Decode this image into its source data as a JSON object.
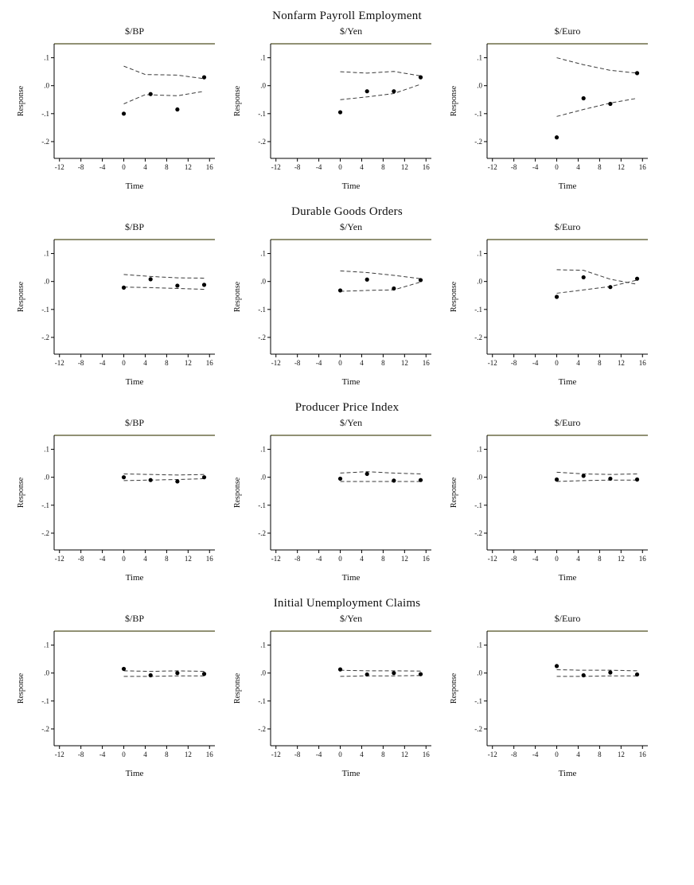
{
  "colors": {
    "background": "#ffffff",
    "axis": "#000000",
    "top_border": "#4f4f20",
    "band": "#3a3a3a",
    "point": "#000000",
    "text": "#111111"
  },
  "rows": [
    {
      "title": "Nonfarm Payroll Employment"
    },
    {
      "title": "Durable Goods Orders"
    },
    {
      "title": "Producer Price Index"
    },
    {
      "title": "Initial Unemployment Claims"
    }
  ],
  "chart_data": [
    {
      "type": "scatter",
      "group": "Nonfarm Payroll Employment",
      "title": "$/BP",
      "xlabel": "Time",
      "ylabel": "Response",
      "xlim": [
        -13,
        17
      ],
      "ylim": [
        -0.26,
        0.15
      ],
      "xticks": [
        -12,
        -8,
        -4,
        0,
        4,
        8,
        12,
        16
      ],
      "yticks": [
        0.1,
        0.0,
        -0.1,
        -0.2
      ],
      "ytick_labels": [
        ".1",
        ".0",
        "-.1",
        "-.2"
      ],
      "points": {
        "x": [
          0,
          5,
          10,
          15
        ],
        "y": [
          -0.1,
          -0.03,
          -0.085,
          0.03
        ]
      },
      "upper_band": {
        "x": [
          0,
          4,
          10,
          15
        ],
        "y": [
          0.07,
          0.04,
          0.038,
          0.025
        ]
      },
      "lower_band": {
        "x": [
          0,
          4,
          10,
          15
        ],
        "y": [
          -0.065,
          -0.032,
          -0.036,
          -0.02
        ]
      }
    },
    {
      "type": "scatter",
      "group": "Nonfarm Payroll Employment",
      "title": "$/Yen",
      "xlabel": "Time",
      "ylabel": "Response",
      "xlim": [
        -13,
        17
      ],
      "ylim": [
        -0.26,
        0.15
      ],
      "xticks": [
        -12,
        -8,
        -4,
        0,
        4,
        8,
        12,
        16
      ],
      "yticks": [
        0.1,
        0.0,
        -0.1,
        -0.2
      ],
      "ytick_labels": [
        ".1",
        ".0",
        "-.1",
        "-.2"
      ],
      "points": {
        "x": [
          0,
          5,
          10,
          15
        ],
        "y": [
          -0.095,
          -0.02,
          -0.02,
          0.03
        ]
      },
      "upper_band": {
        "x": [
          0,
          5,
          10,
          15
        ],
        "y": [
          0.05,
          0.045,
          0.051,
          0.035
        ]
      },
      "lower_band": {
        "x": [
          0,
          5,
          10,
          15
        ],
        "y": [
          -0.05,
          -0.04,
          -0.028,
          0.005
        ]
      }
    },
    {
      "type": "scatter",
      "group": "Nonfarm Payroll Employment",
      "title": "$/Euro",
      "xlabel": "Time",
      "ylabel": "Response",
      "xlim": [
        -13,
        17
      ],
      "ylim": [
        -0.26,
        0.15
      ],
      "xticks": [
        -12,
        -8,
        -4,
        0,
        4,
        8,
        12,
        16
      ],
      "yticks": [
        0.1,
        0.0,
        -0.1,
        -0.2
      ],
      "ytick_labels": [
        ".1",
        ".0",
        "-.1",
        "-.2"
      ],
      "points": {
        "x": [
          0,
          5,
          10,
          15
        ],
        "y": [
          -0.185,
          -0.045,
          -0.065,
          0.045
        ]
      },
      "upper_band": {
        "x": [
          0,
          5,
          10,
          15
        ],
        "y": [
          0.1,
          0.075,
          0.055,
          0.045
        ]
      },
      "lower_band": {
        "x": [
          0,
          5,
          10,
          15
        ],
        "y": [
          -0.11,
          -0.085,
          -0.062,
          -0.045
        ]
      }
    },
    {
      "type": "scatter",
      "group": "Durable Goods Orders",
      "title": "$/BP",
      "xlabel": "Time",
      "ylabel": "Response",
      "xlim": [
        -13,
        17
      ],
      "ylim": [
        -0.26,
        0.15
      ],
      "xticks": [
        -12,
        -8,
        -4,
        0,
        4,
        8,
        12,
        16
      ],
      "yticks": [
        0.1,
        0.0,
        -0.1,
        -0.2
      ],
      "ytick_labels": [
        ".1",
        ".0",
        "-.1",
        "-.2"
      ],
      "points": {
        "x": [
          0,
          5,
          10,
          15
        ],
        "y": [
          -0.022,
          0.008,
          -0.015,
          -0.012
        ]
      },
      "upper_band": {
        "x": [
          0,
          5,
          10,
          15
        ],
        "y": [
          0.025,
          0.018,
          0.013,
          0.012
        ]
      },
      "lower_band": {
        "x": [
          0,
          5,
          10,
          15
        ],
        "y": [
          -0.02,
          -0.022,
          -0.025,
          -0.028
        ]
      }
    },
    {
      "type": "scatter",
      "group": "Durable Goods Orders",
      "title": "$/Yen",
      "xlabel": "Time",
      "ylabel": "Response",
      "xlim": [
        -13,
        17
      ],
      "ylim": [
        -0.26,
        0.15
      ],
      "xticks": [
        -12,
        -8,
        -4,
        0,
        4,
        8,
        12,
        16
      ],
      "yticks": [
        0.1,
        0.0,
        -0.1,
        -0.2
      ],
      "ytick_labels": [
        ".1",
        ".0",
        "-.1",
        "-.2"
      ],
      "points": {
        "x": [
          0,
          5,
          10,
          15
        ],
        "y": [
          -0.032,
          0.007,
          -0.025,
          0.005
        ]
      },
      "upper_band": {
        "x": [
          0,
          5,
          10,
          15
        ],
        "y": [
          0.038,
          0.032,
          0.022,
          0.01
        ]
      },
      "lower_band": {
        "x": [
          0,
          5,
          10,
          15
        ],
        "y": [
          -0.035,
          -0.032,
          -0.03,
          -0.002
        ]
      }
    },
    {
      "type": "scatter",
      "group": "Durable Goods Orders",
      "title": "$/Euro",
      "xlabel": "Time",
      "ylabel": "Response",
      "xlim": [
        -13,
        17
      ],
      "ylim": [
        -0.26,
        0.15
      ],
      "xticks": [
        -12,
        -8,
        -4,
        0,
        4,
        8,
        12,
        16
      ],
      "yticks": [
        0.1,
        0.0,
        -0.1,
        -0.2
      ],
      "ytick_labels": [
        ".1",
        ".0",
        "-.1",
        "-.2"
      ],
      "points": {
        "x": [
          0,
          5,
          10,
          15
        ],
        "y": [
          -0.055,
          0.015,
          -0.02,
          0.01
        ]
      },
      "upper_band": {
        "x": [
          0,
          5,
          10,
          15
        ],
        "y": [
          0.042,
          0.04,
          0.008,
          -0.01
        ]
      },
      "lower_band": {
        "x": [
          0,
          5,
          10,
          15
        ],
        "y": [
          -0.042,
          -0.03,
          -0.018,
          0.005
        ]
      }
    },
    {
      "type": "scatter",
      "group": "Producer Price Index",
      "title": "$/BP",
      "xlabel": "Time",
      "ylabel": "Response",
      "xlim": [
        -13,
        17
      ],
      "ylim": [
        -0.26,
        0.15
      ],
      "xticks": [
        -12,
        -8,
        -4,
        0,
        4,
        8,
        12,
        16
      ],
      "yticks": [
        0.1,
        0.0,
        -0.1,
        -0.2
      ],
      "ytick_labels": [
        ".1",
        ".0",
        "-.1",
        "-.2"
      ],
      "points": {
        "x": [
          0,
          5,
          10,
          15
        ],
        "y": [
          0.0,
          -0.01,
          -0.015,
          0.0
        ]
      },
      "upper_band": {
        "x": [
          0,
          5,
          10,
          15
        ],
        "y": [
          0.012,
          0.01,
          0.008,
          0.01
        ]
      },
      "lower_band": {
        "x": [
          0,
          5,
          10,
          15
        ],
        "y": [
          -0.012,
          -0.01,
          -0.008,
          -0.005
        ]
      }
    },
    {
      "type": "scatter",
      "group": "Producer Price Index",
      "title": "$/Yen",
      "xlabel": "Time",
      "ylabel": "Response",
      "xlim": [
        -13,
        17
      ],
      "ylim": [
        -0.26,
        0.15
      ],
      "xticks": [
        -12,
        -8,
        -4,
        0,
        4,
        8,
        12,
        16
      ],
      "yticks": [
        0.1,
        0.0,
        -0.1,
        -0.2
      ],
      "ytick_labels": [
        ".1",
        ".0",
        "-.1",
        "-.2"
      ],
      "points": {
        "x": [
          0,
          5,
          10,
          15
        ],
        "y": [
          -0.005,
          0.012,
          -0.012,
          -0.01
        ]
      },
      "upper_band": {
        "x": [
          0,
          5,
          10,
          15
        ],
        "y": [
          0.015,
          0.02,
          0.015,
          0.012
        ]
      },
      "lower_band": {
        "x": [
          0,
          5,
          10,
          15
        ],
        "y": [
          -0.015,
          -0.015,
          -0.015,
          -0.015
        ]
      }
    },
    {
      "type": "scatter",
      "group": "Producer Price Index",
      "title": "$/Euro",
      "xlabel": "Time",
      "ylabel": "Response",
      "xlim": [
        -13,
        17
      ],
      "ylim": [
        -0.26,
        0.15
      ],
      "xticks": [
        -12,
        -8,
        -4,
        0,
        4,
        8,
        12,
        16
      ],
      "yticks": [
        0.1,
        0.0,
        -0.1,
        -0.2
      ],
      "ytick_labels": [
        ".1",
        ".0",
        "-.1",
        "-.2"
      ],
      "points": {
        "x": [
          0,
          5,
          10,
          15
        ],
        "y": [
          -0.008,
          0.005,
          -0.005,
          -0.008
        ]
      },
      "upper_band": {
        "x": [
          0,
          5,
          10,
          15
        ],
        "y": [
          0.018,
          0.012,
          0.01,
          0.012
        ]
      },
      "lower_band": {
        "x": [
          0,
          5,
          10,
          15
        ],
        "y": [
          -0.015,
          -0.012,
          -0.01,
          -0.01
        ]
      }
    },
    {
      "type": "scatter",
      "group": "Initial Unemployment Claims",
      "title": "$/BP",
      "xlabel": "Time",
      "ylabel": "Response",
      "xlim": [
        -13,
        17
      ],
      "ylim": [
        -0.26,
        0.15
      ],
      "xticks": [
        -12,
        -8,
        -4,
        0,
        4,
        8,
        12,
        16
      ],
      "yticks": [
        0.1,
        0.0,
        -0.1,
        -0.2
      ],
      "ytick_labels": [
        ".1",
        ".0",
        "-.1",
        "-.2"
      ],
      "points": {
        "x": [
          0,
          5,
          10,
          15
        ],
        "y": [
          0.015,
          -0.008,
          0.0,
          -0.003
        ]
      },
      "upper_band": {
        "x": [
          0,
          5,
          10,
          15
        ],
        "y": [
          0.008,
          0.006,
          0.008,
          0.006
        ]
      },
      "lower_band": {
        "x": [
          0,
          5,
          10,
          15
        ],
        "y": [
          -0.012,
          -0.012,
          -0.01,
          -0.01
        ]
      }
    },
    {
      "type": "scatter",
      "group": "Initial Unemployment Claims",
      "title": "$/Yen",
      "xlabel": "Time",
      "ylabel": "Response",
      "xlim": [
        -13,
        17
      ],
      "ylim": [
        -0.26,
        0.15
      ],
      "xticks": [
        -12,
        -8,
        -4,
        0,
        4,
        8,
        12,
        16
      ],
      "yticks": [
        0.1,
        0.0,
        -0.1,
        -0.2
      ],
      "ytick_labels": [
        ".1",
        ".0",
        "-.1",
        "-.2"
      ],
      "points": {
        "x": [
          0,
          5,
          10,
          15
        ],
        "y": [
          0.013,
          -0.005,
          0.0,
          -0.004
        ]
      },
      "upper_band": {
        "x": [
          0,
          5,
          10,
          15
        ],
        "y": [
          0.01,
          0.008,
          0.008,
          0.007
        ]
      },
      "lower_band": {
        "x": [
          0,
          5,
          10,
          15
        ],
        "y": [
          -0.012,
          -0.01,
          -0.01,
          -0.009
        ]
      }
    },
    {
      "type": "scatter",
      "group": "Initial Unemployment Claims",
      "title": "$/Euro",
      "xlabel": "Time",
      "ylabel": "Response",
      "xlim": [
        -13,
        17
      ],
      "ylim": [
        -0.26,
        0.15
      ],
      "xticks": [
        -12,
        -8,
        -4,
        0,
        4,
        8,
        12,
        16
      ],
      "yticks": [
        0.1,
        0.0,
        -0.1,
        -0.2
      ],
      "ytick_labels": [
        ".1",
        ".0",
        "-.1",
        "-.2"
      ],
      "points": {
        "x": [
          0,
          5,
          10,
          15
        ],
        "y": [
          0.025,
          -0.008,
          0.002,
          -0.005
        ]
      },
      "upper_band": {
        "x": [
          0,
          5,
          10,
          15
        ],
        "y": [
          0.012,
          0.01,
          0.01,
          0.008
        ]
      },
      "lower_band": {
        "x": [
          0,
          5,
          10,
          15
        ],
        "y": [
          -0.012,
          -0.012,
          -0.01,
          -0.01
        ]
      }
    }
  ]
}
